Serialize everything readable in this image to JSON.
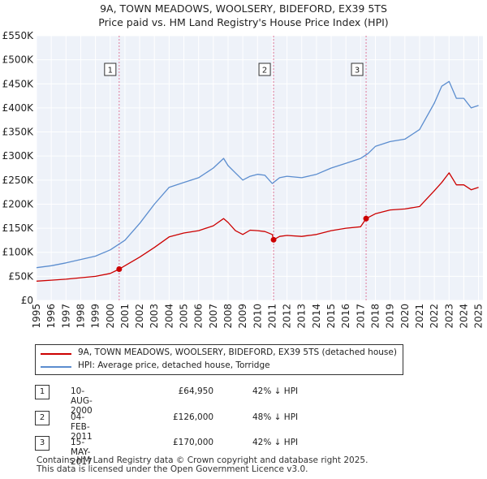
{
  "chart_data": {
    "type": "line",
    "title": "9A, TOWN MEADOWS, WOOLSERY, BIDEFORD, EX39 5TS",
    "subtitle": "Price paid vs. HM Land Registry's House Price Index (HPI)",
    "xlabel": "",
    "ylabel": "",
    "xlim": [
      1995,
      2025.3
    ],
    "ylim": [
      0,
      550000
    ],
    "x_ticks": [
      "1995",
      "1996",
      "1997",
      "1998",
      "1999",
      "2000",
      "2001",
      "2002",
      "2003",
      "2004",
      "2005",
      "2006",
      "2007",
      "2008",
      "2009",
      "2010",
      "2011",
      "2012",
      "2013",
      "2014",
      "2015",
      "2016",
      "2017",
      "2018",
      "2019",
      "2020",
      "2021",
      "2022",
      "2023",
      "2024",
      "2025"
    ],
    "y_ticks": [
      "£0",
      "£50K",
      "£100K",
      "£150K",
      "£200K",
      "£250K",
      "£300K",
      "£350K",
      "£400K",
      "£450K",
      "£500K",
      "£550K"
    ],
    "grid": true,
    "series": [
      {
        "name": "9A, TOWN MEADOWS, WOOLSERY, BIDEFORD, EX39 5TS (detached house)",
        "color": "#cc0000",
        "x": [
          1995,
          1996,
          1997,
          1998,
          1999,
          2000,
          2000.61,
          2001,
          2002,
          2003,
          2004,
          2005,
          2006,
          2007,
          2007.7,
          2008,
          2008.5,
          2009,
          2009.5,
          2010,
          2010.5,
          2011,
          2011.09,
          2011.5,
          2012,
          2013,
          2014,
          2015,
          2016,
          2017,
          2017.37,
          2018,
          2019,
          2020,
          2021,
          2022,
          2022.5,
          2023,
          2023.5,
          2024,
          2024.5,
          2025
        ],
        "values": [
          40000,
          42000,
          44000,
          47000,
          50000,
          56000,
          64950,
          72000,
          90000,
          110000,
          132000,
          140000,
          145000,
          155000,
          170000,
          162000,
          145000,
          137000,
          146000,
          145000,
          143000,
          137000,
          126000,
          133000,
          135000,
          133000,
          137000,
          145000,
          150000,
          153000,
          170000,
          180000,
          188000,
          190000,
          195000,
          228000,
          245000,
          265000,
          240000,
          240000,
          230000,
          235000
        ]
      },
      {
        "name": "HPI: Average price, detached house, Torridge",
        "color": "#5b8dcf",
        "x": [
          1995,
          1996,
          1997,
          1998,
          1999,
          2000,
          2001,
          2002,
          2003,
          2004,
          2005,
          2006,
          2007,
          2007.7,
          2008,
          2008.5,
          2009,
          2009.5,
          2010,
          2010.5,
          2011,
          2011.5,
          2012,
          2013,
          2014,
          2015,
          2016,
          2017,
          2017.5,
          2018,
          2019,
          2020,
          2021,
          2022,
          2022.5,
          2023,
          2023.5,
          2024,
          2024.5,
          2025
        ],
        "values": [
          68000,
          72000,
          78000,
          85000,
          92000,
          105000,
          125000,
          160000,
          200000,
          235000,
          245000,
          255000,
          275000,
          295000,
          280000,
          265000,
          250000,
          258000,
          262000,
          260000,
          243000,
          255000,
          258000,
          255000,
          262000,
          275000,
          285000,
          295000,
          305000,
          320000,
          330000,
          335000,
          355000,
          410000,
          445000,
          455000,
          420000,
          420000,
          400000,
          405000
        ]
      }
    ],
    "annotations": [
      {
        "label": "1",
        "x": 2000.61,
        "value": 64950
      },
      {
        "label": "2",
        "x": 2011.09,
        "value": 126000
      },
      {
        "label": "3",
        "x": 2017.37,
        "value": 170000
      }
    ]
  },
  "legend": {
    "property_label": "9A, TOWN MEADOWS, WOOLSERY, BIDEFORD, EX39 5TS (detached house)",
    "hpi_label": "HPI: Average price, detached house, Torridge"
  },
  "transactions": [
    {
      "num": "1",
      "date": "10-AUG-2000",
      "price": "£64,950",
      "hpi": "42% ↓ HPI"
    },
    {
      "num": "2",
      "date": "04-FEB-2011",
      "price": "£126,000",
      "hpi": "48% ↓ HPI"
    },
    {
      "num": "3",
      "date": "15-MAY-2017",
      "price": "£170,000",
      "hpi": "42% ↓ HPI"
    }
  ],
  "footer": {
    "line1": "Contains HM Land Registry data © Crown copyright and database right 2025.",
    "line2": "This data is licensed under the Open Government Licence v3.0."
  }
}
